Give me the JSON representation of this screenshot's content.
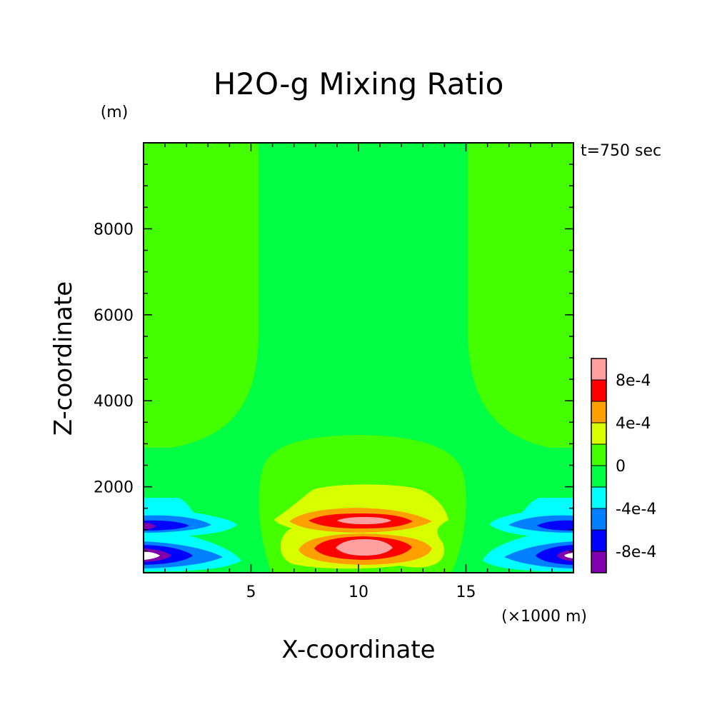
{
  "chart_data": {
    "type": "contour",
    "title": "H2O-g Mixing Ratio",
    "xlabel": "X-coordinate",
    "ylabel": "Z-coordinate",
    "x_unit": "(×1000 m)",
    "y_unit": "(m)",
    "time_label": "t=750 sec",
    "xlim": [
      0,
      20
    ],
    "ylim": [
      0,
      10000
    ],
    "x_ticks": [
      5,
      10,
      15
    ],
    "x_tick_labels": [
      "5",
      "10",
      "15"
    ],
    "y_ticks": [
      2000,
      4000,
      6000,
      8000
    ],
    "y_tick_labels": [
      "2000",
      "4000",
      "6000",
      "8000"
    ],
    "colorbar": {
      "levels": [
        -0.001,
        -0.0008,
        -0.0006,
        -0.0004,
        -0.0002,
        0,
        0.0002,
        0.0004,
        0.0006,
        0.0008,
        0.001
      ],
      "colors": [
        "#7f00ac",
        "#0000ff",
        "#0080ff",
        "#00ffff",
        "#00ff44",
        "#44ff00",
        "#d8ff00",
        "#ffa000",
        "#ff0000",
        "#ff9f9f"
      ],
      "tick_labels": [
        "-8e-4",
        "-4e-4",
        "0",
        "4e-4",
        "8e-4"
      ],
      "tick_values": [
        -0.0008,
        -0.0004,
        0,
        0.0004,
        0.0008
      ]
    },
    "field_summary": {
      "max_center": {
        "x": 10.2,
        "z": 600,
        "value": 0.00095
      },
      "secondary_max": {
        "x": 10.2,
        "z": 1350,
        "value": 0.00085
      },
      "min_left_edge": {
        "x": 0.2,
        "z": 450,
        "value": -0.001
      },
      "min_right_edge": {
        "x": 19.8,
        "z": 450,
        "value": -0.0009
      }
    }
  }
}
